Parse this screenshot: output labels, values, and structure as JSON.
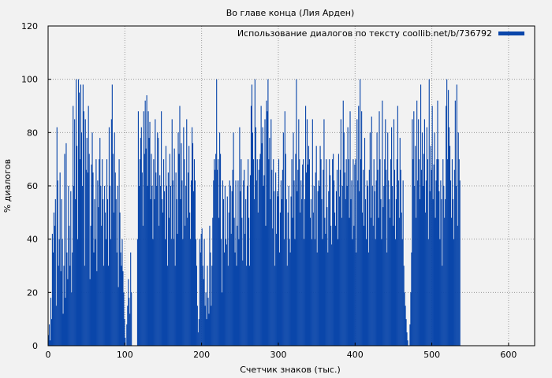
{
  "chart_data": {
    "type": "bar",
    "title": "Во главе конца (Лия Арден)",
    "xlabel": "Счетчик знаков (тыс.)",
    "ylabel": "% диалогов",
    "xlim": [
      0,
      634
    ],
    "ylim": [
      0,
      120
    ],
    "x_ticks": [
      0,
      100,
      200,
      300,
      400,
      500,
      600
    ],
    "y_ticks": [
      0,
      20,
      40,
      60,
      80,
      100,
      120
    ],
    "grid": true,
    "legend_position": "top-right",
    "series": [
      {
        "name": "Использование диалогов по тексту coollib.net/b/736792",
        "color": "#0a46aa",
        "x_step": 1,
        "values": [
          4,
          8,
          2,
          18,
          10,
          42,
          35,
          50,
          45,
          55,
          15,
          82,
          62,
          30,
          40,
          65,
          28,
          55,
          40,
          12,
          30,
          72,
          18,
          76,
          35,
          25,
          60,
          45,
          30,
          58,
          20,
          35,
          90,
          60,
          85,
          55,
          100,
          75,
          40,
          100,
          95,
          70,
          98,
          80,
          60,
          98,
          88,
          30,
          85,
          66,
          78,
          65,
          90,
          72,
          25,
          45,
          68,
          80,
          65,
          35,
          55,
          40,
          70,
          28,
          62,
          52,
          70,
          78,
          60,
          45,
          70,
          55,
          30,
          60,
          50,
          40,
          70,
          55,
          30,
          82,
          60,
          40,
          85,
          98,
          72,
          50,
          80,
          65,
          55,
          35,
          60,
          22,
          70,
          50,
          35,
          30,
          40,
          28,
          20,
          10,
          3,
          0,
          8,
          15,
          25,
          18,
          12,
          35,
          20,
          0,
          0,
          0,
          0,
          0,
          0,
          0,
          40,
          88,
          60,
          70,
          78,
          82,
          65,
          45,
          88,
          72,
          92,
          74,
          94,
          60,
          88,
          78,
          84,
          55,
          72,
          60,
          40,
          70,
          55,
          85,
          65,
          60,
          80,
          78,
          45,
          64,
          60,
          88,
          55,
          50,
          70,
          58,
          40,
          75,
          60,
          30,
          65,
          48,
          72,
          60,
          40,
          85,
          62,
          40,
          74,
          30,
          65,
          55,
          42,
          80,
          72,
          90,
          55,
          76,
          62,
          40,
          82,
          70,
          45,
          60,
          85,
          48,
          65,
          75,
          50,
          40,
          62,
          82,
          76,
          58,
          70,
          62,
          40,
          30,
          15,
          5,
          10,
          40,
          35,
          42,
          44,
          30,
          25,
          40,
          15,
          20,
          10,
          30,
          18,
          12,
          45,
          35,
          15,
          30,
          48,
          62,
          70,
          66,
          72,
          100,
          66,
          70,
          48,
          80,
          72,
          40,
          20,
          62,
          55,
          35,
          60,
          40,
          38,
          56,
          30,
          50,
          62,
          60,
          42,
          58,
          66,
          80,
          48,
          35,
          62,
          30,
          45,
          62,
          40,
          82,
          58,
          70,
          48,
          32,
          62,
          66,
          42,
          55,
          30,
          60,
          70,
          48,
          30,
          64,
          90,
          98,
          80,
          70,
          55,
          100,
          82,
          62,
          70,
          50,
          66,
          70,
          72,
          90,
          76,
          82,
          60,
          64,
          85,
          45,
          92,
          88,
          100,
          70,
          78,
          55,
          85,
          66,
          44,
          70,
          58,
          30,
          65,
          42,
          58,
          56,
          70,
          35,
          50,
          62,
          55,
          66,
          80,
          40,
          88,
          72,
          55,
          30,
          50,
          60,
          40,
          35,
          56,
          70,
          48,
          80,
          62,
          40,
          72,
          100,
          58,
          66,
          85,
          70,
          50,
          62,
          55,
          68,
          70,
          40,
          55,
          90,
          65,
          85,
          68,
          75,
          70,
          48,
          55,
          40,
          85,
          50,
          60,
          40,
          65,
          75,
          35,
          58,
          62,
          60,
          75,
          70,
          55,
          40,
          66,
          85,
          48,
          42,
          70,
          52,
          35,
          58,
          70,
          64,
          45,
          38,
          70,
          72,
          62,
          50,
          45,
          58,
          66,
          40,
          72,
          56,
          66,
          85,
          48,
          60,
          92,
          80,
          65,
          55,
          70,
          60,
          82,
          70,
          48,
          88,
          55,
          62,
          40,
          70,
          45,
          68,
          70,
          35,
          85,
          62,
          90,
          58,
          100,
          70,
          88,
          50,
          66,
          45,
          78,
          55,
          40,
          62,
          60,
          35,
          66,
          80,
          48,
          86,
          60,
          45,
          70,
          58,
          40,
          62,
          80,
          66,
          48,
          88,
          70,
          55,
          40,
          92,
          52,
          60,
          70,
          85,
          66,
          35,
          80,
          62,
          55,
          48,
          70,
          82,
          60,
          45,
          85,
          66,
          40,
          55,
          70,
          90,
          62,
          48,
          78,
          66,
          50,
          40,
          62,
          30,
          20,
          15,
          10,
          5,
          2,
          0,
          0,
          8,
          20,
          35,
          85,
          70,
          88,
          60,
          75,
          48,
          92,
          62,
          85,
          70,
          55,
          98,
          66,
          80,
          60,
          72,
          85,
          50,
          62,
          82,
          70,
          40,
          100,
          58,
          75,
          66,
          90,
          55,
          68,
          80,
          48,
          62,
          70,
          92,
          70,
          58,
          40,
          62,
          55,
          30,
          70,
          60,
          48,
          55,
          90,
          100,
          70,
          96,
          82,
          75,
          62,
          48,
          70,
          55,
          40,
          66,
          92,
          60,
          98,
          45,
          80,
          70,
          62
        ]
      }
    ]
  }
}
